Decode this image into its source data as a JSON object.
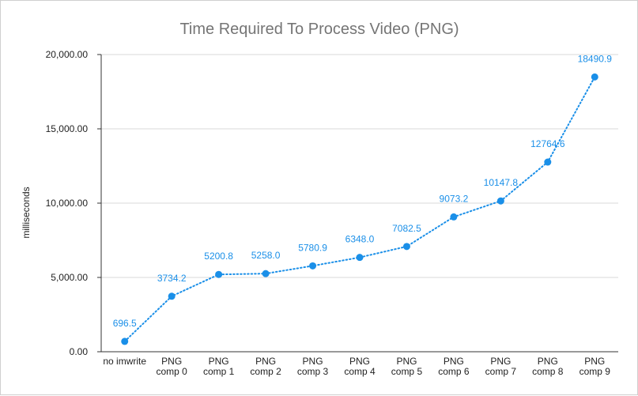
{
  "chart_data": {
    "type": "line",
    "title": "Time Required To Process Video (PNG)",
    "xlabel": "",
    "ylabel": "milliseconds",
    "ylim": [
      0,
      20000
    ],
    "yticks": [
      0,
      5000,
      10000,
      15000,
      20000
    ],
    "ytick_labels": [
      "0.00",
      "5,000.00",
      "10,000.00",
      "15,000.00",
      "20,000.00"
    ],
    "categories": [
      [
        "no imwrite"
      ],
      [
        "PNG",
        "comp 0"
      ],
      [
        "PNG",
        "comp 1"
      ],
      [
        "PNG",
        "comp 2"
      ],
      [
        "PNG",
        "comp 3"
      ],
      [
        "PNG",
        "comp 4"
      ],
      [
        "PNG",
        "comp 5"
      ],
      [
        "PNG",
        "comp 6"
      ],
      [
        "PNG",
        "comp 7"
      ],
      [
        "PNG",
        "comp 8"
      ],
      [
        "PNG",
        "comp 9"
      ]
    ],
    "series": [
      {
        "values": [
          696.5,
          3734.2,
          5200.8,
          5258.0,
          5780.9,
          6348.0,
          7082.5,
          9073.2,
          10147.8,
          12764.6,
          18490.9
        ],
        "data_labels": [
          "696.5",
          "3734.2",
          "5200.8",
          "5258.0",
          "5780.9",
          "6348.0",
          "7082.5",
          "9073.2",
          "10147.8",
          "12764.6",
          "18490.9"
        ],
        "color": "#1a8fe8",
        "line_style": "dotted"
      }
    ],
    "grid": true,
    "legend": "none"
  }
}
